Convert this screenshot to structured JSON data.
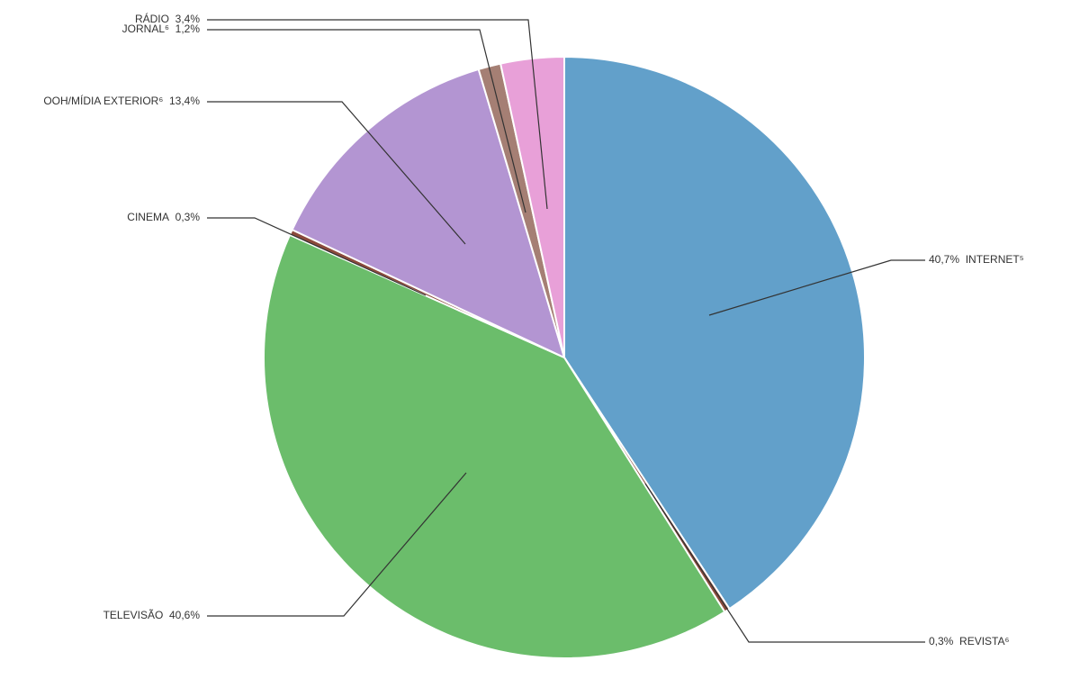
{
  "chart_data": {
    "type": "pie",
    "categories": [
      "INTERNET⁵",
      "REVISTA⁶",
      "TELEVISÃO",
      "CINEMA",
      "OOH/MÍDIA EXTERIOR⁶",
      "JORNAL⁶",
      "RÁDIO"
    ],
    "values": [
      40.7,
      0.3,
      40.6,
      0.3,
      13.4,
      1.2,
      3.4
    ],
    "value_labels": [
      "40,7%",
      "0,3%",
      "40,6%",
      "0,3%",
      "13,4%",
      "1,2%",
      "3,4%"
    ],
    "colors": [
      "#62a0ca",
      "#8c4a3c",
      "#6bbd6b",
      "#8c4a3c",
      "#b395d2",
      "#a57f74",
      "#e8a0d8"
    ]
  }
}
